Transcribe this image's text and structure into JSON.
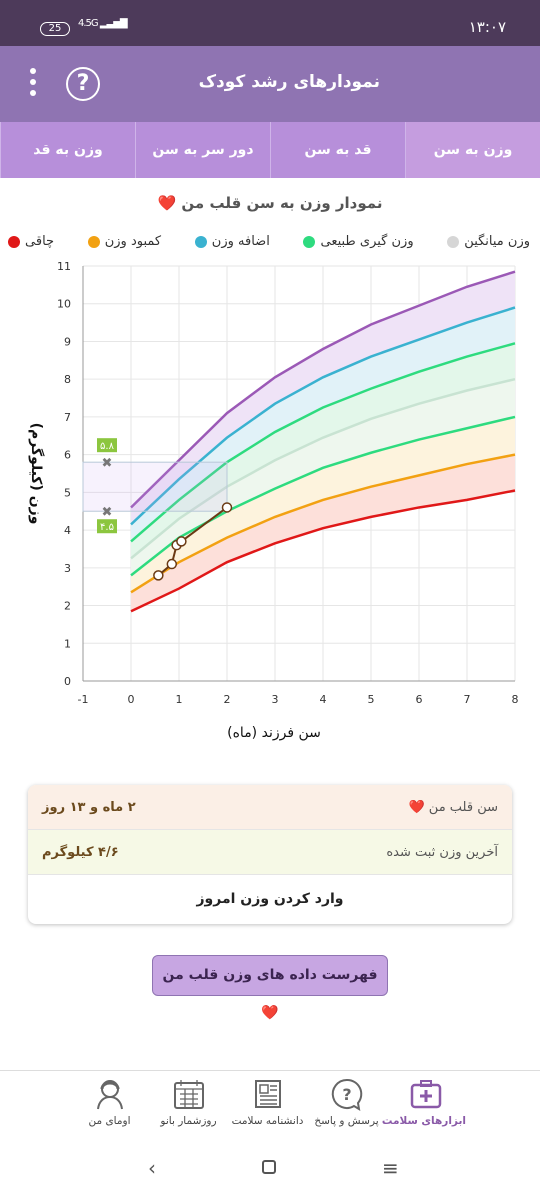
{
  "status_bar": {
    "time": "۱۳:۰۷",
    "battery": "25",
    "network": "4.5G"
  },
  "app_bar": {
    "title": "نمودارهای رشد کودک",
    "help_glyph": "?"
  },
  "tabs": [
    {
      "label": "وزن به سن",
      "active": true
    },
    {
      "label": "قد به سن",
      "active": false
    },
    {
      "label": "دور سر به سن",
      "active": false
    },
    {
      "label": "وزن به قد",
      "active": false
    }
  ],
  "chart_title": "نمودار وزن به سن قلب من ❤️",
  "legend": [
    {
      "label": "چاقی",
      "color": "#d91a1a"
    },
    {
      "label": "کمبود وزن",
      "color": "#f2a112"
    },
    {
      "label": "اضافه وزن",
      "color": "#3ab2d0"
    },
    {
      "label": "وزن گیری طبیعی",
      "color": "#2edb7f"
    },
    {
      "label": "وزن میانگین",
      "color": "#d6d6d6"
    }
  ],
  "chart_data": {
    "type": "line",
    "xlabel": "سن فرزند (ماه)",
    "ylabel": "وزن (کیلوگرم)",
    "xlim": [
      -1,
      8
    ],
    "ylim": [
      0,
      11
    ],
    "x_ticks": [
      -1,
      0,
      1,
      2,
      3,
      4,
      5,
      6,
      7,
      8
    ],
    "y_ticks": [
      0,
      1,
      2,
      3,
      4,
      5,
      6,
      7,
      8,
      9,
      10,
      11
    ],
    "x": [
      0,
      1,
      2,
      3,
      4,
      5,
      6,
      7,
      8
    ],
    "series": [
      {
        "color": "#9b59b6",
        "fill": "#efe3f7",
        "values": [
          4.6,
          5.85,
          7.1,
          8.05,
          8.8,
          9.45,
          9.95,
          10.45,
          10.85
        ]
      },
      {
        "color": "#3ab2d0",
        "fill": "#e1f2f8",
        "values": [
          4.15,
          5.35,
          6.45,
          7.35,
          8.05,
          8.6,
          9.05,
          9.5,
          9.9
        ]
      },
      {
        "color": "#2edb7f",
        "fill": "#e3f7ea",
        "values": [
          3.7,
          4.8,
          5.8,
          6.6,
          7.25,
          7.75,
          8.2,
          8.6,
          8.95
        ]
      },
      {
        "color": "#c8e3d2",
        "fill": "#eef7ee",
        "values": [
          3.25,
          4.3,
          5.15,
          5.85,
          6.45,
          6.95,
          7.35,
          7.7,
          8.0
        ]
      },
      {
        "color": "#2edb7f",
        "fill": "#fdf3dd",
        "values": [
          2.8,
          3.8,
          4.5,
          5.1,
          5.65,
          6.05,
          6.4,
          6.7,
          7.0
        ]
      },
      {
        "color": "#f2a112",
        "fill": "#fde0da",
        "values": [
          2.35,
          3.15,
          3.8,
          4.35,
          4.8,
          5.15,
          5.45,
          5.75,
          6.0
        ]
      },
      {
        "color": "#e01818",
        "fill": "none",
        "values": [
          1.85,
          2.45,
          3.15,
          3.65,
          4.05,
          4.35,
          4.6,
          4.8,
          5.05
        ]
      }
    ],
    "child_points": [
      {
        "x": 0.57,
        "y": 2.8
      },
      {
        "x": 0.85,
        "y": 3.1
      },
      {
        "x": 0.95,
        "y": 3.6
      },
      {
        "x": 1.05,
        "y": 3.7
      },
      {
        "x": 2.0,
        "y": 4.6
      }
    ],
    "range_markers": {
      "upper": "۵.۸",
      "lower": "۴.۵",
      "upper_value": 5.8,
      "lower_value": 4.5,
      "at_x": -0.5
    }
  },
  "info": {
    "age_label": "سن قلب من ❤️",
    "age_value": "۲ ماه و ۱۳ روز",
    "weight_label": "آخرین وزن ثبت شده",
    "weight_value": "۴/۶ کیلوگرم",
    "enter_weight": "وارد کردن وزن امروز"
  },
  "list_button": "فهرست داده های وزن قلب من ❤️",
  "bottom_nav": [
    {
      "label": "ابزارهای سلامت",
      "icon": "health-kit-icon",
      "active": true
    },
    {
      "label": "پرسش و پاسخ",
      "icon": "question-bubble-icon",
      "active": false
    },
    {
      "label": "دانشنامه سلامت",
      "icon": "encyclopedia-icon",
      "active": false
    },
    {
      "label": "روزشمار بانو",
      "icon": "calendar-icon",
      "active": false
    },
    {
      "label": "اومای من",
      "icon": "profile-icon",
      "active": false
    }
  ]
}
